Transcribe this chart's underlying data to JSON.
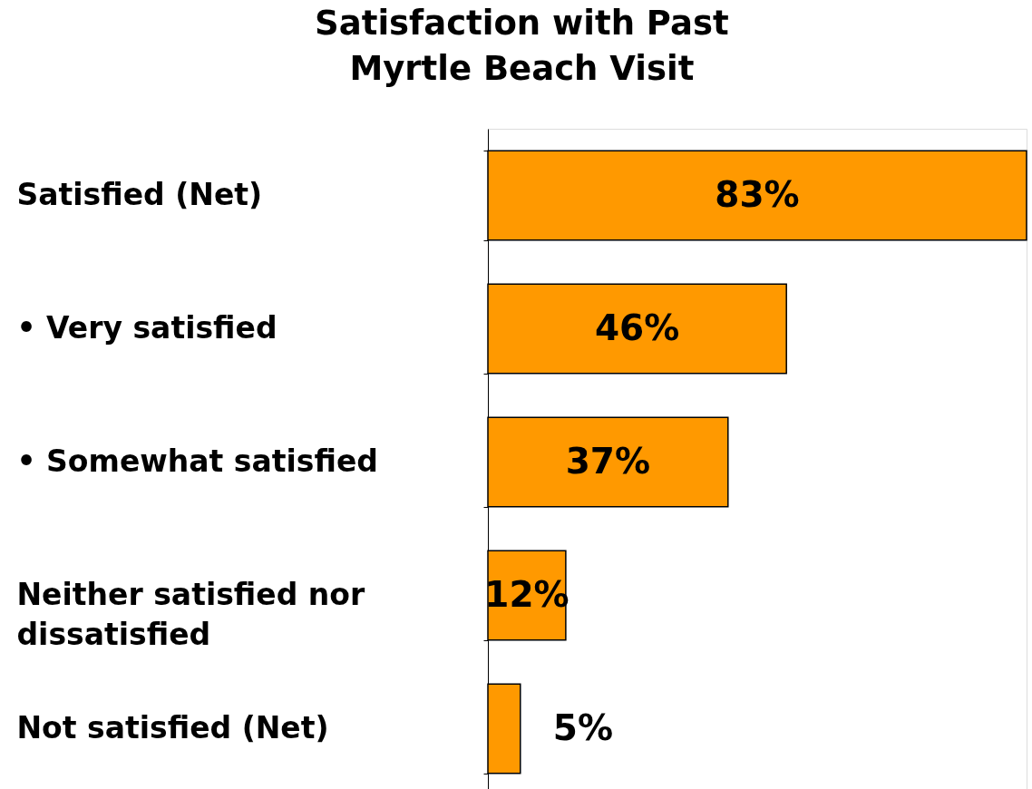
{
  "chart_data": {
    "type": "bar",
    "orientation": "horizontal",
    "title": "Satisfaction with Past Myrtle Beach Visit",
    "categories": [
      "Satisfied (Net)",
      "• Very satisfied",
      "• Somewhat satisfied",
      "Neither satisfied nor dissatisfied",
      "Not satisfied (Net)"
    ],
    "values": [
      83,
      46,
      37,
      12,
      5
    ],
    "value_labels": [
      "83%",
      "46%",
      "37%",
      "12%",
      "5%"
    ],
    "color": "#ff9900",
    "tick_labels": "y",
    "grid": false
  }
}
